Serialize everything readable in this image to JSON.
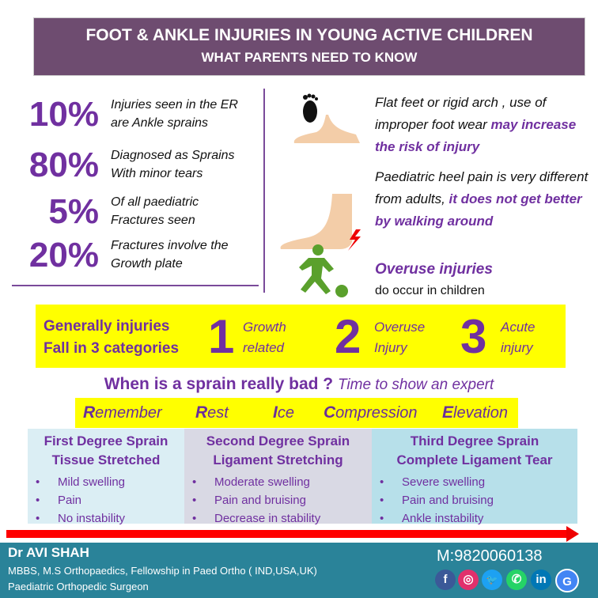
{
  "header": {
    "title": "FOOT & ANKLE INJURIES IN YOUNG ACTIVE CHILDREN",
    "subtitle": "WHAT PARENTS NEED TO KNOW"
  },
  "stats": [
    {
      "value": "10%",
      "line1": "Injuries seen in the ER",
      "line2": "are  Ankle sprains"
    },
    {
      "value": "80%",
      "line1": "Diagnosed as Sprains",
      "line2": "With minor tears"
    },
    {
      "value": "5%",
      "line1": "Of all paediatric",
      "line2": "Fractures seen"
    },
    {
      "value": "20%",
      "line1": "Fractures involve the",
      "line2": "Growth plate"
    }
  ],
  "risks": [
    {
      "icon": "footprint-icon",
      "text": "Flat feet or rigid arch , use of improper foot wear ",
      "emph": "may increase the risk of injury"
    },
    {
      "icon": "heel-pain-icon",
      "text": "Paediatric heel pain is very different from adults, ",
      "emph": "it does not get better by walking around"
    },
    {
      "icon": "soccer-player-icon",
      "emph": "Overuse injuries",
      "text": "do occur in children"
    }
  ],
  "categories": {
    "intro1": "Generally injuries",
    "intro2": "Fall in 3 categories",
    "items": [
      {
        "num": "1",
        "l1": "Growth",
        "l2": "related"
      },
      {
        "num": "2",
        "l1": "Overuse",
        "l2": "Injury"
      },
      {
        "num": "3",
        "l1": "Acute",
        "l2": "injury"
      }
    ]
  },
  "sprain": {
    "question": "When is a sprain really bad ?",
    "sub": "Time to show an expert"
  },
  "rice": [
    {
      "first": "R",
      "rest": "emember"
    },
    {
      "first": "R",
      "rest": "est"
    },
    {
      "first": "I",
      "rest": "ce"
    },
    {
      "first": "C",
      "rest": "ompression"
    },
    {
      "first": "E",
      "rest": "levation"
    }
  ],
  "degrees": [
    {
      "title": "First Degree Sprain",
      "subtitle": "Tissue Stretched",
      "items": [
        "Mild swelling",
        "Pain",
        "No instability"
      ],
      "color": "#dbeef4"
    },
    {
      "title": "Second Degree Sprain",
      "subtitle": "Ligament Stretching",
      "items": [
        "Moderate swelling",
        "Pain and bruising",
        "Decrease in stability"
      ],
      "color": "#d9d9e4"
    },
    {
      "title": "Third Degree Sprain",
      "subtitle": "Complete Ligament Tear",
      "items": [
        "Severe swelling",
        "Pain and bruising",
        "Ankle instability"
      ],
      "color": "#b7e0ea"
    }
  ],
  "footer": {
    "name": "Dr AVI SHAH",
    "qualifications": "MBBS, M.S Orthopaedics, Fellowship in Paed Ortho ( IND,USA,UK)",
    "role": "Paediatric Orthopedic Surgeon",
    "phone": "M:9820060138",
    "social": [
      {
        "icon": "facebook-icon",
        "glyph": "f",
        "color": "#3b5998"
      },
      {
        "icon": "instagram-icon",
        "glyph": "◎",
        "color": "#e1306c"
      },
      {
        "icon": "twitter-icon",
        "glyph": "🐦",
        "color": "#1da1f2"
      },
      {
        "icon": "whatsapp-icon",
        "glyph": "✆",
        "color": "#25d366"
      },
      {
        "icon": "linkedin-icon",
        "glyph": "in",
        "color": "#0077b5"
      },
      {
        "icon": "google-business-icon",
        "glyph": "G",
        "color": "#4285f4"
      }
    ]
  }
}
